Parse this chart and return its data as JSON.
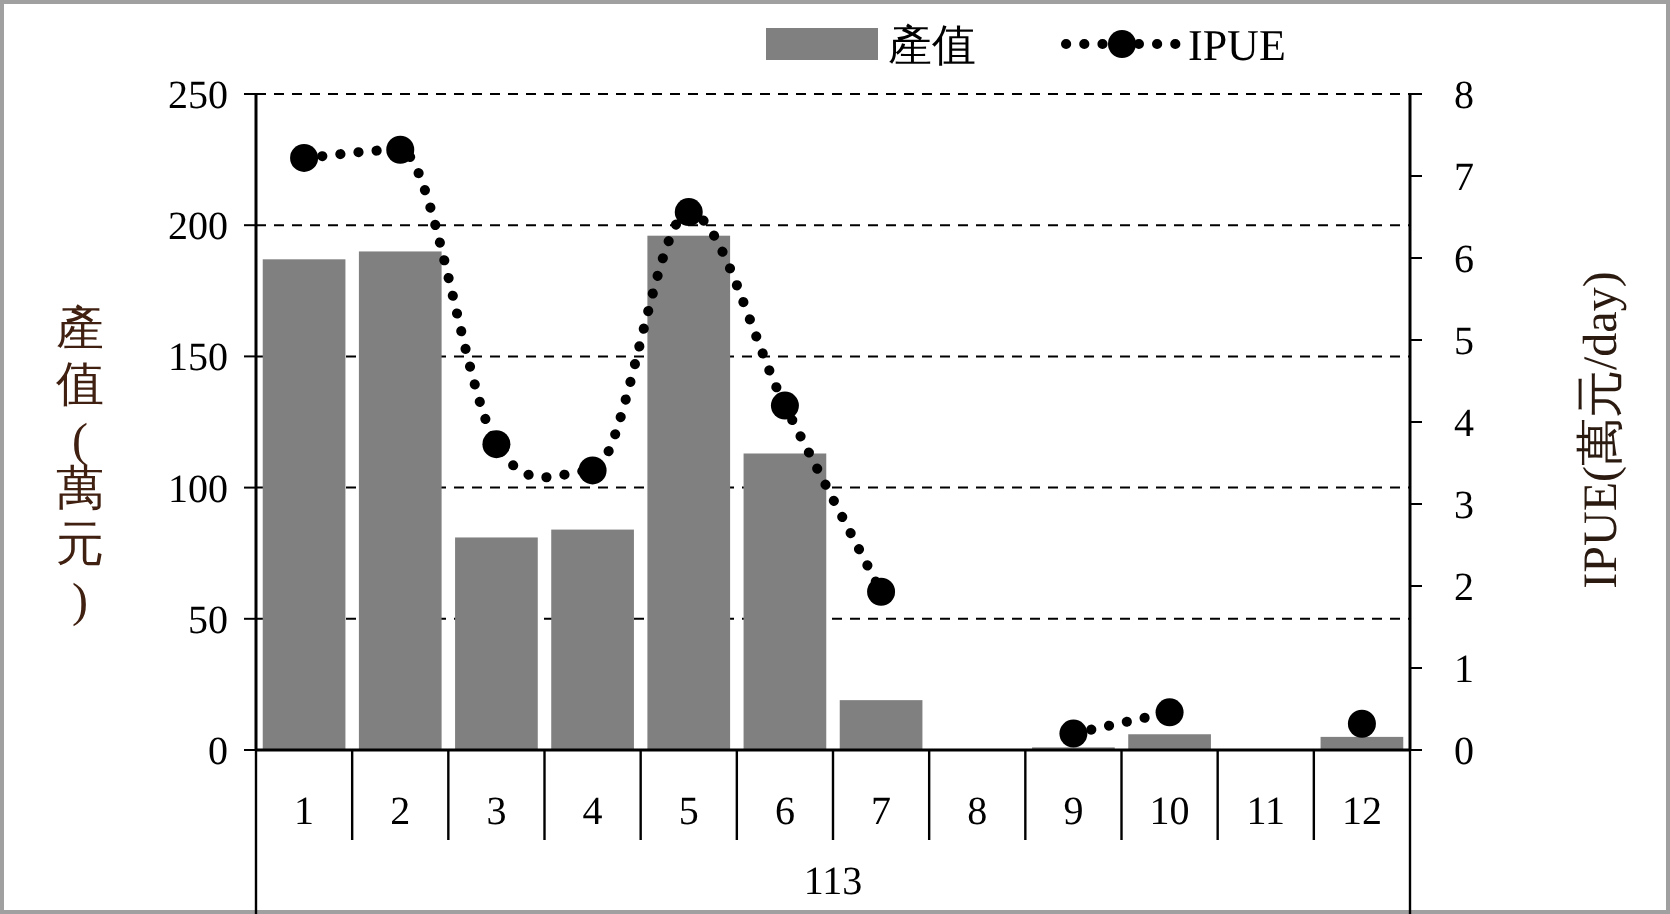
{
  "chart_data": {
    "type": "bar",
    "categories": [
      "1",
      "2",
      "3",
      "4",
      "5",
      "6",
      "7",
      "8",
      "9",
      "10",
      "11",
      "12"
    ],
    "xlabel": "113",
    "ylabel": "產值(萬元)",
    "y2label": "IPUE(萬元/day)",
    "ylim": [
      0,
      250
    ],
    "yticks": [
      0,
      50,
      100,
      150,
      200,
      250
    ],
    "y2lim": [
      0,
      8
    ],
    "y2ticks": [
      0,
      1,
      2,
      3,
      4,
      5,
      6,
      7,
      8
    ],
    "grid": "y",
    "legend": "top",
    "series": [
      {
        "name": "產值",
        "color": "#808080",
        "values": [
          187,
          190,
          81,
          84,
          196,
          113,
          19,
          null,
          1,
          6,
          null,
          5
        ]
      },
      {
        "name": "IPUE",
        "type": "line",
        "axis": "y2",
        "color": "#000000",
        "marker": "circle",
        "line_style": "dotted",
        "values": [
          7.22,
          7.32,
          3.73,
          3.41,
          6.56,
          4.2,
          1.93,
          null,
          0.2,
          0.46,
          null,
          0.32
        ]
      }
    ]
  }
}
